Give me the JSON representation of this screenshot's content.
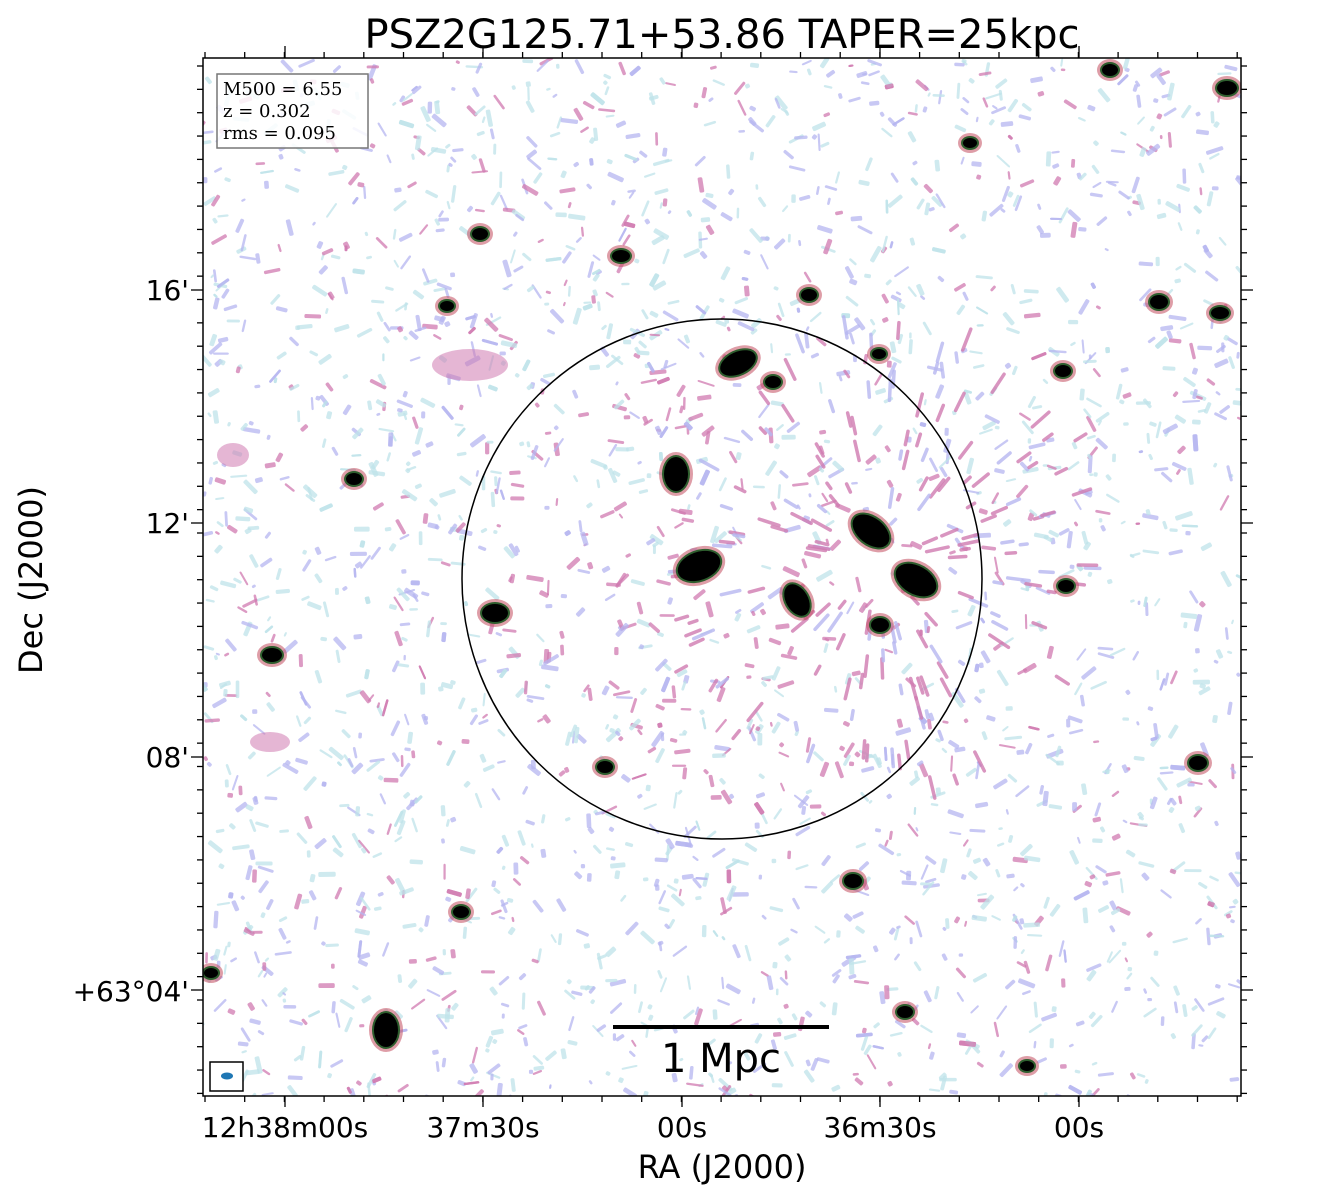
{
  "chart_data": {
    "type": "heatmap",
    "title": "PSZ2G125.71+53.86 TAPER=25kpc",
    "xlabel": "RA (J2000)",
    "ylabel": "Dec (J2000)",
    "x_ticks": [
      "12h38m00s",
      "37m30s",
      "00s",
      "36m30s",
      "00s"
    ],
    "y_ticks": [
      "16'",
      "12'",
      "08'",
      "+63°04'"
    ],
    "info_box": [
      "M500 = 6.55",
      "z = 0.302",
      "rms = 0.095"
    ],
    "scalebar_label": "1 Mpc",
    "circle": "R500 circle centred on cluster",
    "colormap": [
      "#ffffff",
      "#bfe3ea",
      "#b6b6f0",
      "#d07ab0",
      "#c24d5e",
      "#2e5e2e",
      "#000000"
    ]
  }
}
